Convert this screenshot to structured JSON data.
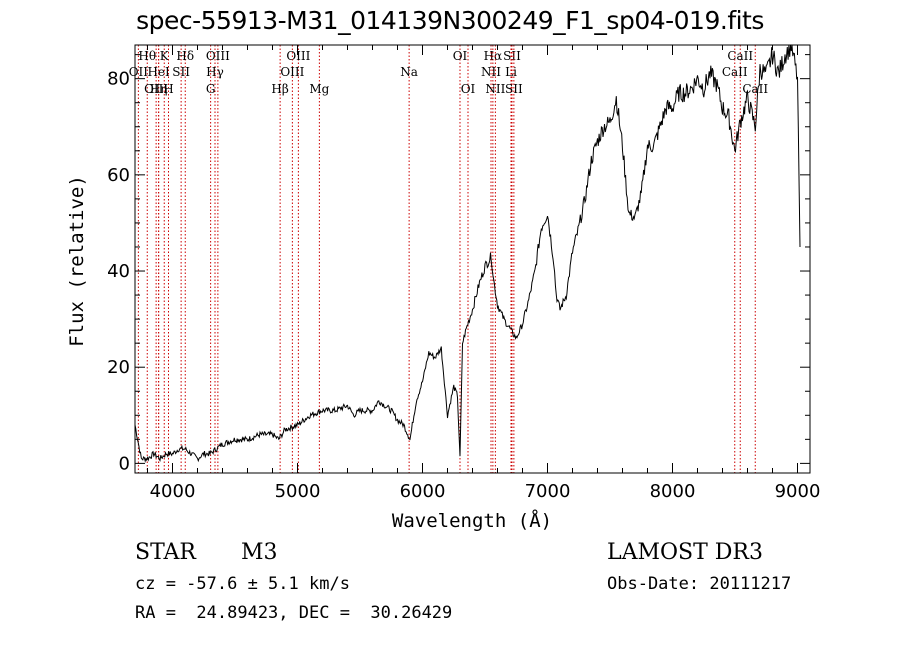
{
  "chart_data": {
    "type": "line",
    "title": "spec-55913-M31_014139N300249_F1_sp04-019.fits",
    "xlabel": "Wavelength (Å)",
    "ylabel": "Flux (relative)",
    "xlim": [
      3700,
      9100
    ],
    "ylim": [
      -2,
      87
    ],
    "xticks": [
      4000,
      5000,
      6000,
      7000,
      8000,
      9000
    ],
    "yticks": [
      0,
      20,
      40,
      60,
      80
    ],
    "grid": false,
    "series": [
      {
        "name": "spectrum",
        "x": [
          3700,
          3750,
          3800,
          3850,
          3900,
          3950,
          4000,
          4050,
          4100,
          4150,
          4200,
          4250,
          4300,
          4350,
          4400,
          4500,
          4600,
          4700,
          4800,
          4850,
          4900,
          5000,
          5100,
          5200,
          5300,
          5400,
          5450,
          5500,
          5600,
          5650,
          5700,
          5750,
          5800,
          5850,
          5900,
          5950,
          6000,
          6050,
          6100,
          6150,
          6200,
          6250,
          6280,
          6300,
          6320,
          6350,
          6400,
          6450,
          6500,
          6550,
          6570,
          6600,
          6650,
          6700,
          6750,
          6800,
          6850,
          6900,
          6950,
          7000,
          7050,
          7070,
          7100,
          7150,
          7200,
          7250,
          7300,
          7350,
          7400,
          7450,
          7500,
          7550,
          7600,
          7650,
          7700,
          7750,
          7800,
          7850,
          7900,
          7950,
          8000,
          8050,
          8100,
          8150,
          8200,
          8250,
          8300,
          8350,
          8400,
          8450,
          8498,
          8542,
          8600,
          8662,
          8700,
          8750,
          8800,
          8850,
          8900,
          8950,
          9000,
          9020
        ],
        "values": [
          8,
          1,
          1,
          2,
          1,
          2,
          2,
          3,
          3,
          2,
          1,
          2,
          2,
          3,
          4,
          5,
          5,
          6,
          6,
          5,
          7,
          8,
          10,
          11,
          11,
          12,
          10,
          11,
          11,
          13,
          12,
          11,
          9,
          8,
          5,
          13,
          17,
          23,
          22,
          24,
          10,
          16,
          14,
          1,
          25,
          28,
          32,
          37,
          41,
          43,
          38,
          33,
          30,
          28,
          26,
          29,
          34,
          40,
          49,
          52,
          42,
          35,
          32,
          35,
          44,
          49,
          55,
          63,
          67,
          70,
          71,
          76,
          66,
          52,
          51,
          56,
          66,
          66,
          70,
          74,
          74,
          77,
          77,
          78,
          80,
          78,
          81,
          79,
          74,
          72,
          65,
          71,
          76,
          70,
          82,
          81,
          85,
          81,
          85,
          87,
          80,
          45
        ]
      }
    ],
    "emission_lines": [
      {
        "label": "Hθ",
        "wavelength": 3798,
        "row": 1
      },
      {
        "label": "OII",
        "wavelength": 3727,
        "row": 2
      },
      {
        "label": "OIII",
        "wavelength": 3869,
        "row": 3
      },
      {
        "label": "K",
        "wavelength": 3934,
        "row": 1
      },
      {
        "label": "HeI",
        "wavelength": 3889,
        "row": 2
      },
      {
        "label": "Hη",
        "wavelength": 3889,
        "row": 3
      },
      {
        "label": "H",
        "wavelength": 3968,
        "row": 3
      },
      {
        "label": "SII",
        "wavelength": 4069,
        "row": 2
      },
      {
        "label": "Hδ",
        "wavelength": 4102,
        "row": 1
      },
      {
        "label": "OIII",
        "wavelength": 4363,
        "row": 1
      },
      {
        "label": "Hγ",
        "wavelength": 4340,
        "row": 2
      },
      {
        "label": "G",
        "wavelength": 4305,
        "row": 3
      },
      {
        "label": "Hβ",
        "wavelength": 4861,
        "row": 3
      },
      {
        "label": "OIII",
        "wavelength": 5007,
        "row": 1
      },
      {
        "label": "OIII",
        "wavelength": 4959,
        "row": 2
      },
      {
        "label": "Mg",
        "wavelength": 5175,
        "row": 3
      },
      {
        "label": "Na",
        "wavelength": 5893,
        "row": 2
      },
      {
        "label": "OI",
        "wavelength": 6300,
        "row": 1
      },
      {
        "label": "OI",
        "wavelength": 6364,
        "row": 3
      },
      {
        "label": "Hα",
        "wavelength": 6563,
        "row": 1
      },
      {
        "label": "SII",
        "wavelength": 6716,
        "row": 1
      },
      {
        "label": "NII",
        "wavelength": 6548,
        "row": 2
      },
      {
        "label": "Li",
        "wavelength": 6708,
        "row": 2
      },
      {
        "label": "NII",
        "wavelength": 6583,
        "row": 3
      },
      {
        "label": "SII",
        "wavelength": 6731,
        "row": 3
      },
      {
        "label": "CaII",
        "wavelength": 8542,
        "row": 1
      },
      {
        "label": "CaII",
        "wavelength": 8498,
        "row": 2
      },
      {
        "label": "CaII",
        "wavelength": 8662,
        "row": 3
      }
    ]
  },
  "info": {
    "object_type": "STAR",
    "subclass": "M3",
    "survey": "LAMOST DR3",
    "cz": "cz = -57.6 ± 5.1 km/s",
    "obs_date": "Obs-Date: 20111217",
    "coords": "RA =  24.89423, DEC =  30.26429"
  },
  "colors": {
    "axis": "#000000",
    "spectrum": "#000000",
    "emission_line": "#cc0000"
  }
}
